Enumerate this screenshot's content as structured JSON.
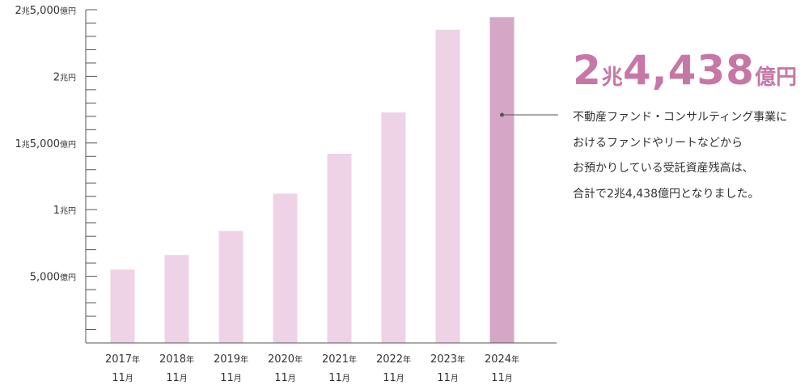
{
  "chart_data": {
    "type": "bar",
    "categories": [
      {
        "year": "2017",
        "year_unit": "年",
        "month": "11",
        "month_unit": "月"
      },
      {
        "year": "2018",
        "year_unit": "年",
        "month": "11",
        "month_unit": "月"
      },
      {
        "year": "2019",
        "year_unit": "年",
        "month": "11",
        "month_unit": "月"
      },
      {
        "year": "2020",
        "year_unit": "年",
        "month": "11",
        "month_unit": "月"
      },
      {
        "year": "2021",
        "year_unit": "年",
        "month": "11",
        "month_unit": "月"
      },
      {
        "year": "2022",
        "year_unit": "年",
        "month": "11",
        "month_unit": "月"
      },
      {
        "year": "2023",
        "year_unit": "年",
        "month": "11",
        "month_unit": "月"
      },
      {
        "year": "2024",
        "year_unit": "年",
        "month": "11",
        "month_unit": "月"
      }
    ],
    "values": [
      5500,
      6600,
      8400,
      11200,
      14200,
      17300,
      23500,
      24438
    ],
    "value_unit": "億円",
    "ylim": [
      0,
      25000
    ],
    "yticks": [
      {
        "value": 5000,
        "parts": [
          {
            "t": "5,000",
            "u": false
          },
          {
            "t": "億円",
            "u": true
          }
        ]
      },
      {
        "value": 10000,
        "parts": [
          {
            "t": "1",
            "u": false
          },
          {
            "t": "兆円",
            "u": true
          }
        ]
      },
      {
        "value": 15000,
        "parts": [
          {
            "t": "1",
            "u": false
          },
          {
            "t": "兆",
            "u": true
          },
          {
            "t": "5,000",
            "u": false
          },
          {
            "t": "億円",
            "u": true
          }
        ]
      },
      {
        "value": 20000,
        "parts": [
          {
            "t": "2",
            "u": false
          },
          {
            "t": "兆円",
            "u": true
          }
        ]
      },
      {
        "value": 25000,
        "parts": [
          {
            "t": "2",
            "u": false
          },
          {
            "t": "兆",
            "u": true
          },
          {
            "t": "5,000",
            "u": false
          },
          {
            "t": "億円",
            "u": true
          }
        ]
      }
    ],
    "minor_tick_step": 1000,
    "bar_color": "#edd3e5",
    "highlight_color": "#d6a6c7",
    "highlight_index": 7,
    "axis_color": "#555555",
    "grid": false
  },
  "callout": {
    "big_prefix": "2",
    "big_unit1": "兆",
    "big_number": "4,438",
    "big_unit2": "億円",
    "big_color": "#c777a6",
    "lines": [
      "不動産ファンド・コンサルティング事業に",
      "おけるファンドやリートなどから",
      "お預かりしている受託資産残高は、",
      "合計で2兆4,438億円となりました。"
    ]
  }
}
